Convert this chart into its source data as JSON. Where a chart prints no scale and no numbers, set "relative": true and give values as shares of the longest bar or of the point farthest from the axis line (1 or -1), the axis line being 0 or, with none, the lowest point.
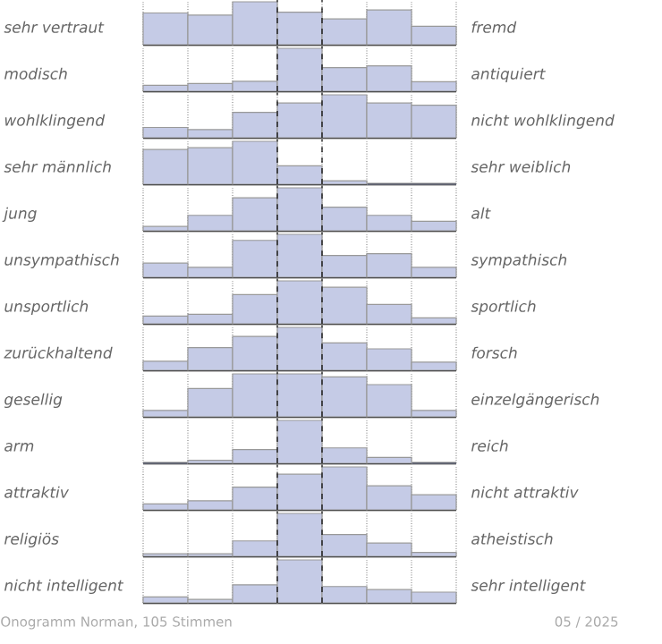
{
  "chart_data": [
    {
      "type": "bar",
      "relative": true,
      "ylabel": "sehr vertraut",
      "y2label": "fremd",
      "categories": [
        null,
        null,
        null,
        null,
        null,
        null,
        null
      ],
      "values": [
        0.74,
        0.69,
        1,
        0.76,
        0.6,
        0.81,
        0.43
      ],
      "color": "#c5cbe6",
      "grid": "x"
    },
    {
      "type": "bar",
      "relative": true,
      "ylabel": "modisch",
      "y2label": "antiquiert",
      "categories": [
        null,
        null,
        null,
        null,
        null,
        null,
        null
      ],
      "values": [
        0.14,
        0.18,
        0.23,
        1,
        0.55,
        0.59,
        0.22
      ],
      "color": "#c5cbe6",
      "grid": "x"
    },
    {
      "type": "bar",
      "relative": true,
      "ylabel": "wohlklingend",
      "y2label": "nicht wohlklingend",
      "categories": [
        null,
        null,
        null,
        null,
        null,
        null,
        null
      ],
      "values": [
        0.24,
        0.19,
        0.59,
        0.81,
        1,
        0.81,
        0.76
      ],
      "color": "#c5cbe6",
      "grid": "x"
    },
    {
      "type": "bar",
      "relative": true,
      "ylabel": "sehr männlich",
      "y2label": "sehr weiblich",
      "categories": [
        null,
        null,
        null,
        null,
        null,
        null,
        null
      ],
      "values": [
        0.81,
        0.85,
        1,
        0.43,
        0.08,
        0,
        0
      ],
      "color": "#c5cbe6",
      "grid": "x"
    },
    {
      "type": "bar",
      "relative": true,
      "ylabel": "jung",
      "y2label": "alt",
      "categories": [
        null,
        null,
        null,
        null,
        null,
        null,
        null
      ],
      "values": [
        0.1,
        0.36,
        0.77,
        1,
        0.55,
        0.36,
        0.22
      ],
      "color": "#c5cbe6",
      "grid": "x"
    },
    {
      "type": "bar",
      "relative": true,
      "ylabel": "unsympathisch",
      "y2label": "sympathisch",
      "categories": [
        null,
        null,
        null,
        null,
        null,
        null,
        null
      ],
      "values": [
        0.33,
        0.23,
        0.86,
        1,
        0.51,
        0.55,
        0.23
      ],
      "color": "#c5cbe6",
      "grid": "x"
    },
    {
      "type": "bar",
      "relative": true,
      "ylabel": "unsportlich",
      "y2label": "sportlich",
      "categories": [
        null,
        null,
        null,
        null,
        null,
        null,
        null
      ],
      "values": [
        0.18,
        0.22,
        0.68,
        1,
        0.85,
        0.45,
        0.14
      ],
      "color": "#c5cbe6",
      "grid": "x"
    },
    {
      "type": "bar",
      "relative": true,
      "ylabel": "zurückhaltend",
      "y2label": "forsch",
      "categories": [
        null,
        null,
        null,
        null,
        null,
        null,
        null
      ],
      "values": [
        0.21,
        0.53,
        0.79,
        1,
        0.64,
        0.5,
        0.19
      ],
      "color": "#c5cbe6",
      "grid": "x"
    },
    {
      "type": "bar",
      "relative": true,
      "ylabel": "gesellig",
      "y2label": "einzelgängerisch",
      "categories": [
        null,
        null,
        null,
        null,
        null,
        null,
        null
      ],
      "values": [
        0.15,
        0.66,
        1,
        1,
        0.93,
        0.75,
        0.15
      ],
      "color": "#c5cbe6",
      "grid": "x"
    },
    {
      "type": "bar",
      "relative": true,
      "ylabel": "arm",
      "y2label": "reich",
      "categories": [
        null,
        null,
        null,
        null,
        null,
        null,
        null
      ],
      "values": [
        0,
        0.07,
        0.32,
        1,
        0.36,
        0.14,
        0
      ],
      "color": "#c5cbe6",
      "grid": "x"
    },
    {
      "type": "bar",
      "relative": true,
      "ylabel": "attraktiv",
      "y2label": "nicht attraktiv",
      "categories": [
        null,
        null,
        null,
        null,
        null,
        null,
        null
      ],
      "values": [
        0.14,
        0.21,
        0.53,
        0.83,
        1,
        0.56,
        0.35
      ],
      "color": "#c5cbe6",
      "grid": "x"
    },
    {
      "type": "bar",
      "relative": true,
      "ylabel": "religiös",
      "y2label": "atheistisch",
      "categories": [
        null,
        null,
        null,
        null,
        null,
        null,
        null
      ],
      "values": [
        0.06,
        0.06,
        0.36,
        1,
        0.51,
        0.31,
        0.09
      ],
      "color": "#c5cbe6",
      "grid": "x"
    },
    {
      "type": "bar",
      "relative": true,
      "ylabel": "nicht intelligent",
      "y2label": "sehr intelligent",
      "categories": [
        null,
        null,
        null,
        null,
        null,
        null,
        null
      ],
      "values": [
        0.14,
        0.08,
        0.42,
        1,
        0.38,
        0.31,
        0.25
      ],
      "color": "#c5cbe6",
      "grid": "x",
      "annotations": [
        "Onogramm Norman, 105 Stimmen",
        "05 / 2025"
      ]
    }
  ]
}
